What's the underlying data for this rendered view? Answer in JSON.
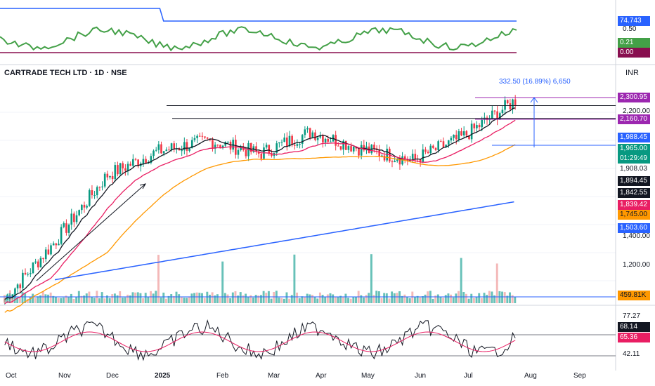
{
  "header": {
    "title": "CARTRADE TECH LTD · 1D · NSE",
    "currency": "INR"
  },
  "measure_label": "332.50 (16.89%) 6,650",
  "price_axis": {
    "ticks": [
      "2,200.00",
      "1,400.00",
      "1,200.00"
    ],
    "tags": [
      {
        "text": "2,300.95",
        "bg": "#9c27b0",
        "fg": "#ffffff"
      },
      {
        "text": "2,160.70",
        "bg": "#9c27b0",
        "fg": "#ffffff"
      },
      {
        "text": "1,988.45",
        "bg": "#2962ff",
        "fg": "#ffffff"
      },
      {
        "text": "1,965.00",
        "bg": "#089981",
        "fg": "#ffffff"
      },
      {
        "text": "01:29:49",
        "bg": "#089981",
        "fg": "#ffffff"
      },
      {
        "text": "1,908.03",
        "bg": "#ffffff",
        "fg": "#131722"
      },
      {
        "text": "1,894.45",
        "bg": "#131722",
        "fg": "#ffffff"
      },
      {
        "text": "1,842.55",
        "bg": "#131722",
        "fg": "#ffffff"
      },
      {
        "text": "1,839.42",
        "bg": "#e91e63",
        "fg": "#ffffff"
      },
      {
        "text": "1,745.00",
        "bg": "#ff9800",
        "fg": "#131722"
      },
      {
        "text": "1,503.60",
        "bg": "#2962ff",
        "fg": "#ffffff"
      }
    ]
  },
  "top_panel": {
    "tags": [
      {
        "text": "74.743",
        "bg": "#2962ff",
        "fg": "#ffffff"
      },
      {
        "text": "0.21",
        "bg": "#43a047",
        "fg": "#ffffff"
      },
      {
        "text": "0.00",
        "bg": "#880e4f",
        "fg": "#ffffff"
      }
    ],
    "tick": "0.50"
  },
  "volume": {
    "tag": {
      "text": "459.81K",
      "bg": "#ff9800",
      "fg": "#131722"
    }
  },
  "rsi_panel": {
    "ticks": [
      "77.27",
      "42.11"
    ],
    "tags": [
      {
        "text": "68.14",
        "bg": "#131722",
        "fg": "#ffffff"
      },
      {
        "text": "65.36",
        "bg": "#e91e63",
        "fg": "#ffffff"
      }
    ]
  },
  "time_axis": {
    "labels": [
      "Oct",
      "Nov",
      "Dec",
      "2025",
      "Feb",
      "Mar",
      "Apr",
      "May",
      "Jun",
      "Jul",
      "Aug",
      "Sep"
    ]
  },
  "chart_data": {
    "type": "line",
    "title": "CARTRADE TECH LTD · 1D · NSE",
    "x": [
      "Oct",
      "Nov",
      "Dec",
      "2025",
      "Feb",
      "Mar",
      "Apr",
      "May",
      "Jun",
      "Jul",
      "Aug"
    ],
    "series": [
      {
        "values": [
          1050,
          1320,
          1620,
          1730,
          1780,
          1720,
          1820,
          1740,
          1690,
          1800,
          1965
        ]
      }
    ],
    "levels": [
      2300.95,
      2160.7,
      1988.45,
      1908.03,
      1894.45
    ],
    "ylim": [
      1100,
      2350
    ],
    "colors": {
      "up": "#089981",
      "down": "#f23645",
      "ema_short": "#131722",
      "ema_mid": "#e91e63",
      "ema_long": "#ff9800",
      "ema_200": "#2962ff"
    }
  }
}
